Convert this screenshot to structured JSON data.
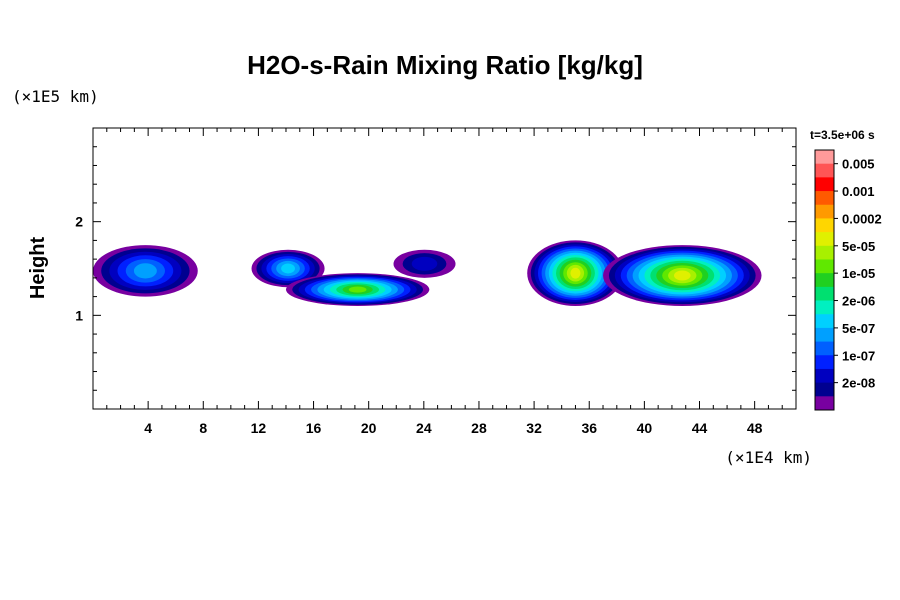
{
  "chart_data": {
    "type": "heatmap",
    "title": "H2O-s-Rain Mixing Ratio [kg/kg]",
    "ylabel": "Height",
    "x_scale": "(×1E4 km)",
    "y_scale": "(×1E5 km)",
    "time_label": "t=3.5e+06 s",
    "xlim": [
      0,
      51
    ],
    "ylim": [
      0,
      3
    ],
    "x_ticks": [
      4,
      8,
      12,
      16,
      20,
      24,
      28,
      32,
      36,
      40,
      44,
      48
    ],
    "y_ticks": [
      1,
      2
    ],
    "x_tick_labels": [
      "4",
      "8",
      "12",
      "16",
      "20",
      "24",
      "28",
      "32",
      "36",
      "40",
      "44",
      "48"
    ],
    "y_tick_labels": [
      "1",
      "2"
    ],
    "colorbar": {
      "labels": [
        "0.005",
        "0.001",
        "0.0002",
        "5e-05",
        "1e-05",
        "2e-06",
        "5e-07",
        "1e-07",
        "2e-08"
      ],
      "colors": [
        "#ff9a9a",
        "#ff5555",
        "#ff0000",
        "#ff5a00",
        "#ff9a00",
        "#ffd600",
        "#e0f000",
        "#a8f000",
        "#60e800",
        "#20d020",
        "#00e070",
        "#00f0c0",
        "#00d0ff",
        "#00a0ff",
        "#0060ff",
        "#0020ff",
        "#0000c0",
        "#000090",
        "#7800a0"
      ]
    },
    "regions": [
      {
        "x": [
          0.0,
          7.6
        ],
        "y": [
          1.2,
          1.75
        ],
        "peak_level": 13
      },
      {
        "x": [
          11.5,
          16.8
        ],
        "y": [
          1.3,
          1.7
        ],
        "peak_level": 12
      },
      {
        "x": [
          14.0,
          24.4
        ],
        "y": [
          1.1,
          1.45
        ],
        "peak_level": 8
      },
      {
        "x": [
          21.8,
          26.3
        ],
        "y": [
          1.4,
          1.7
        ],
        "peak_level": 16
      },
      {
        "x": [
          31.5,
          38.5
        ],
        "y": [
          1.1,
          1.8
        ],
        "peak_level": 6
      },
      {
        "x": [
          37.0,
          48.5
        ],
        "y": [
          1.1,
          1.75
        ],
        "peak_level": 6
      }
    ]
  }
}
